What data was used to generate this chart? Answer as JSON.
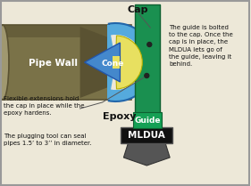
{
  "bg_color": "#ede8d8",
  "border_color": "#999999",
  "pipe_outer_color": "#7a7248",
  "pipe_inner_color": "#5a5232",
  "pipe_mid_color": "#8a8258",
  "pipe_highlight": "#a09870",
  "cone_blue": "#4488cc",
  "cone_blue_dark": "#2255aa",
  "epoxy_yellow": "#e8e060",
  "epoxy_yellow_dark": "#b8b000",
  "cap_blue": "#55aadd",
  "cap_blue_dark": "#2266aa",
  "guide_green": "#1a9050",
  "guide_green_dark": "#0d6030",
  "guide_green_label": "#15a055",
  "mldua_black": "#111111",
  "mldua_gray": "#333333",
  "white": "#ffffff",
  "black": "#111111",
  "text_dark": "#111111",
  "pipe_wall_text": "Pipe Wall",
  "cone_text": "Cone",
  "epoxy_text": "Epoxy",
  "cap_text": "Cap",
  "guide_text": "Guide",
  "mldua_text": "MLDUA",
  "desc_text": "The guide is bolted\nto the cap. Once the\ncap is in place, the\nMLDUA lets go of\nthe guide, leaving it\nbehind.",
  "flex_text": "Flexible extensions hold\nthe cap in place while the\nepoxy hardens.",
  "plug_text": "The plugging tool can seal\npipes 1.5’ to 3’’ in diameter."
}
